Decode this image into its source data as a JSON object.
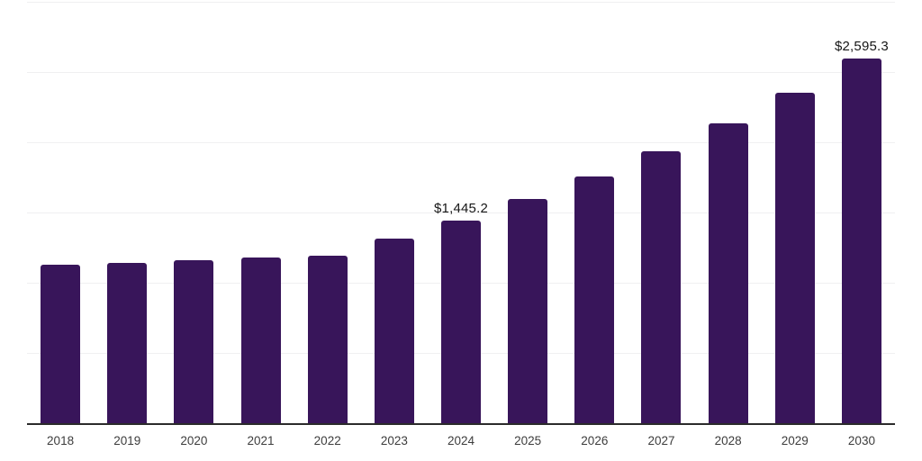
{
  "chart_data": {
    "type": "bar",
    "title": "",
    "xlabel": "",
    "ylabel": "",
    "categories": [
      "2018",
      "2019",
      "2020",
      "2021",
      "2022",
      "2023",
      "2024",
      "2025",
      "2026",
      "2027",
      "2028",
      "2029",
      "2030"
    ],
    "values": [
      1131,
      1143,
      1159,
      1180,
      1190,
      1311,
      1445.2,
      1593.4,
      1756.7,
      1936.8,
      2135.3,
      2354.2,
      2595.3
    ],
    "annotations": [
      {
        "index": 6,
        "text": "$1,445.2"
      },
      {
        "index": 12,
        "text": "$2,595.3"
      }
    ],
    "ylim": [
      0,
      3000
    ],
    "gridline_step": 500,
    "grid": "horizontal-only",
    "y_tick_labels_visible": false,
    "legend": "none",
    "bar_color": "#38155A",
    "axis_line_color": "#2b2b2b",
    "gridline_color": "#f0f0f1",
    "tick_label_color": "#3d3d3d",
    "data_label_color": "#161616"
  }
}
